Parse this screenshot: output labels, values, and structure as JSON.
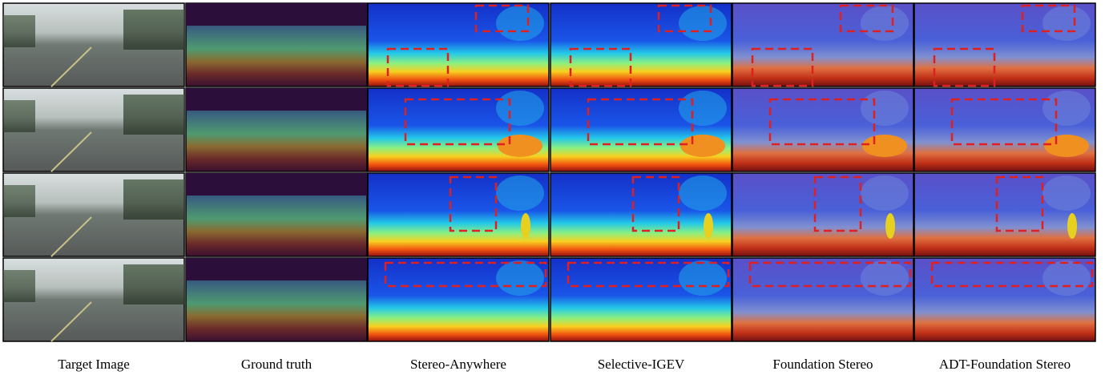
{
  "figure": {
    "columns": [
      "Target Image",
      "Ground truth",
      "Stereo-Anywhere",
      "Selective-IGEV",
      "Foundation Stereo",
      "ADT-Foundation Stereo"
    ]
  }
}
